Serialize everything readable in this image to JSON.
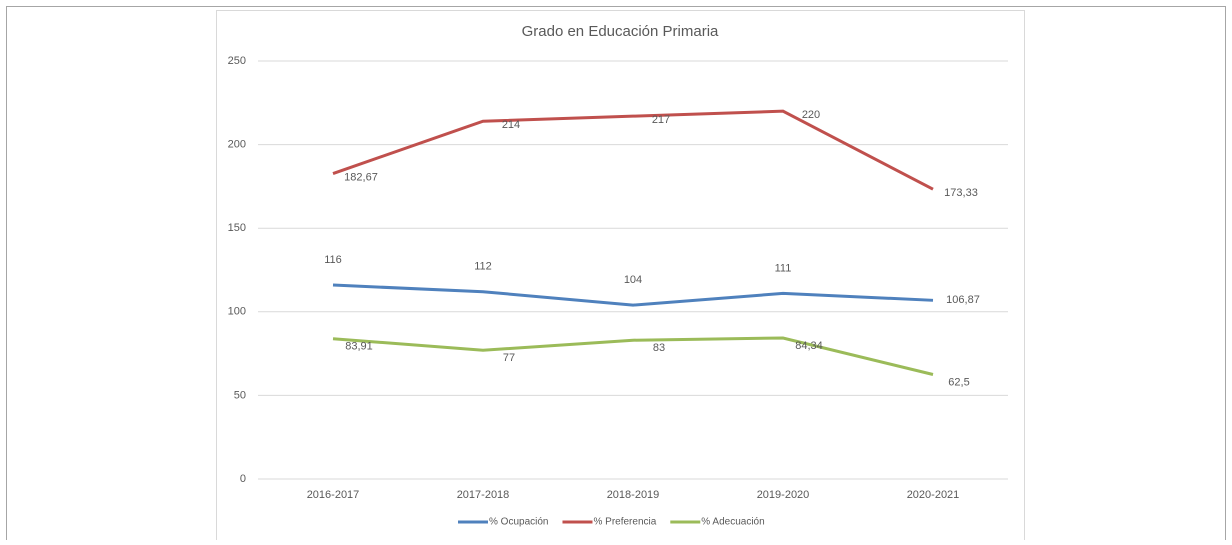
{
  "chart_data": {
    "type": "line",
    "title": "Grado en Educación Primaria",
    "categories": [
      "2016-2017",
      "2017-2018",
      "2018-2019",
      "2019-2020",
      "2020-2021"
    ],
    "series": [
      {
        "name": "% Ocupación",
        "color": "#4f81bd",
        "values": [
          116,
          112,
          104,
          111,
          106.87
        ],
        "value_labels": [
          "116",
          "112",
          "104",
          "111",
          "106,87"
        ]
      },
      {
        "name": "% Preferencia",
        "color": "#c0504d",
        "values": [
          182.67,
          214,
          217,
          220,
          173.33
        ],
        "value_labels": [
          "182,67",
          "214",
          "217",
          "220",
          "173,33"
        ]
      },
      {
        "name": "% Adecuación",
        "color": "#9bbb59",
        "values": [
          83.91,
          77,
          83,
          84.34,
          62.5
        ],
        "value_labels": [
          "83,91",
          "77",
          "83",
          "84,34",
          "62,5"
        ]
      }
    ],
    "ylim": [
      0,
      250
    ],
    "yticks": [
      0,
      50,
      100,
      150,
      200,
      250
    ],
    "grid": true,
    "legend": "bottom"
  }
}
